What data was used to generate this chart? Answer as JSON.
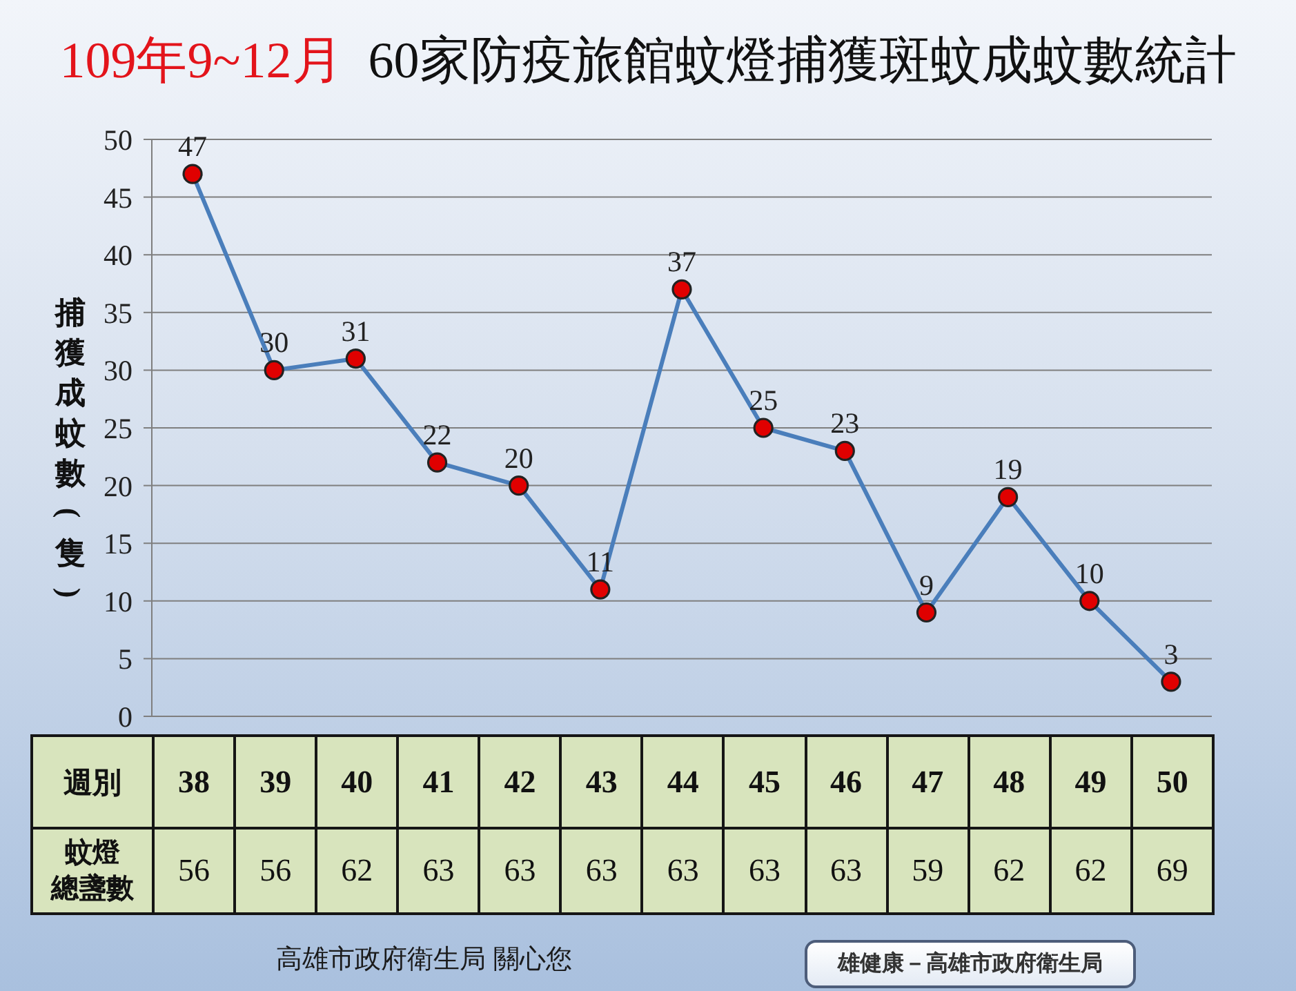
{
  "chart_data": {
    "type": "line",
    "title": "109年9~12月  60家防疫旅館蚊燈捕獲斑蚊成蚊數統計",
    "ylabel": "捕獲成蚊數(隻)",
    "xlabel": "週別",
    "categories": [
      "38",
      "39",
      "40",
      "41",
      "42",
      "43",
      "44",
      "45",
      "46",
      "47",
      "48",
      "49",
      "50"
    ],
    "series": [
      {
        "color": "#4a7ebb",
        "colors": [
          "#e00000",
          "#e00000",
          "#e00000",
          "#e00000",
          "#e00000",
          "#e00000",
          "#e00000",
          "#e00000",
          "#e00000",
          "#e00000",
          "#e00000",
          "#e00000",
          "#e00000"
        ],
        "values": [
          47,
          30,
          31,
          22,
          20,
          11,
          37,
          25,
          23,
          9,
          19,
          10,
          3
        ]
      }
    ],
    "ylim": [
      0,
      50
    ],
    "yticks": [
      0,
      5,
      10,
      15,
      20,
      25,
      30,
      35,
      40,
      45,
      50
    ],
    "grid": "y",
    "marker": "circle",
    "line_style": "solid",
    "data_labels": true,
    "annotations": [
      "蚊燈總盞數",
      "56",
      "56",
      "62",
      "63",
      "63",
      "63",
      "63",
      "63",
      "63",
      "59",
      "62",
      "62",
      "69",
      "高雄市政府衛生局 關心您",
      "雄健康－高雄市政府衛生局"
    ]
  }
}
